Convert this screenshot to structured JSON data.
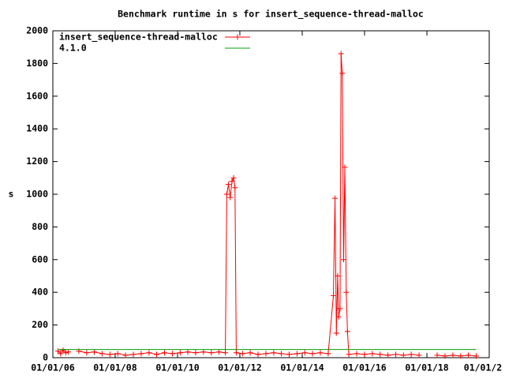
{
  "chart_data": {
    "type": "line",
    "title": "Benchmark runtime in s for insert_sequence-thread-malloc",
    "ylabel": "s",
    "xlim": [
      "2006-01-01",
      "2020-01-01"
    ],
    "xticks": [
      {
        "value": "2006-01-01",
        "label": "01/01/06"
      },
      {
        "value": "2008-01-01",
        "label": "01/01/08"
      },
      {
        "value": "2010-01-01",
        "label": "01/01/10"
      },
      {
        "value": "2012-01-01",
        "label": "01/01/12"
      },
      {
        "value": "2014-01-01",
        "label": "01/01/14"
      },
      {
        "value": "2016-01-01",
        "label": "01/01/16"
      },
      {
        "value": "2018-01-01",
        "label": "01/01/18"
      },
      {
        "value": "2020-01-01",
        "label": "01/01/2"
      }
    ],
    "ylim": [
      0,
      2000
    ],
    "yticks": [
      0,
      200,
      400,
      600,
      800,
      1000,
      1200,
      1400,
      1600,
      1800,
      2000
    ],
    "legend": "top-left",
    "series": [
      {
        "name": "insert_sequence-thread-malloc",
        "color": "#ff0000",
        "marker": "plus",
        "x": [
          "2006-03-01",
          "2006-04-01",
          "2006-05-01",
          "2006-06-01",
          "2006-07-01",
          "2006-09-01",
          "2006-11-01",
          "2007-02-01",
          "2007-05-01",
          "2007-08-01",
          "2007-11-01",
          "2008-02-01",
          "2008-05-01",
          "2008-08-01",
          "2008-11-01",
          "2009-02-01",
          "2009-05-01",
          "2009-08-01",
          "2009-11-01",
          "2010-02-01",
          "2010-05-01",
          "2010-08-01",
          "2010-11-01",
          "2011-02-01",
          "2011-05-01",
          "2011-07-15",
          "2011-08-01",
          "2011-08-20",
          "2011-09-10",
          "2011-10-01",
          "2011-10-20",
          "2011-11-05",
          "2011-11-20",
          "2012-02-01",
          "2012-05-01",
          "2012-08-01",
          "2012-11-01",
          "2013-02-01",
          "2013-05-01",
          "2013-08-01",
          "2013-11-01",
          "2014-02-01",
          "2014-05-01",
          "2014-08-01",
          "2014-11-01",
          "2015-01-01",
          "2015-01-20",
          "2015-02-05",
          "2015-02-20",
          "2015-03-05",
          "2015-03-20",
          "2015-04-01",
          "2015-04-15",
          "2015-05-01",
          "2015-05-15",
          "2015-06-01",
          "2015-06-15",
          "2015-07-01",
          "2015-10-01",
          "2016-01-01",
          "2016-04-01",
          "2016-07-01",
          "2016-10-01",
          "2017-01-01",
          "2017-04-01",
          "2017-07-01",
          "2017-10-01",
          "2018-02-01",
          "2018-05-01",
          "2018-08-01",
          "2018-11-01",
          "2019-02-01",
          "2019-05-01",
          "2019-08-01"
        ],
        "values": [
          40,
          25,
          45,
          30,
          35,
          null,
          40,
          30,
          35,
          25,
          20,
          25,
          15,
          20,
          25,
          30,
          20,
          30,
          25,
          30,
          35,
          30,
          35,
          30,
          35,
          30,
          1000,
          1060,
          980,
          1080,
          1100,
          1040,
          30,
          25,
          30,
          20,
          25,
          30,
          25,
          20,
          25,
          30,
          25,
          30,
          25,
          380,
          975,
          150,
          500,
          250,
          300,
          1860,
          1740,
          600,
          1165,
          400,
          160,
          20,
          25,
          20,
          25,
          20,
          15,
          20,
          15,
          20,
          15,
          null,
          15,
          10,
          15,
          10,
          15,
          10
        ]
      },
      {
        "name": "4.1.0",
        "color": "#00a000",
        "marker": "none",
        "x": [
          "2006-03-01",
          "2019-08-01"
        ],
        "values": [
          50,
          50
        ]
      }
    ]
  }
}
